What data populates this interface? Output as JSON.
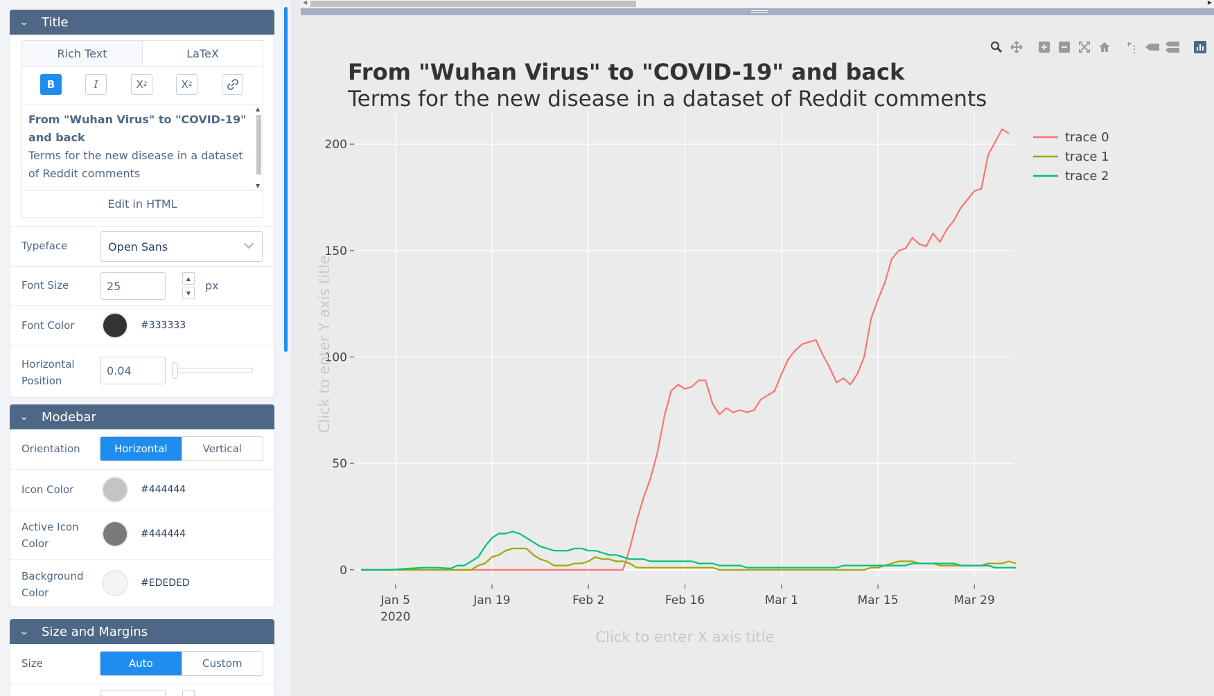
{
  "title_panel": {
    "heading": "Title",
    "tabs": [
      "Rich Text",
      "LaTeX"
    ],
    "format_buttons": [
      "B",
      "I",
      "X2",
      "X2",
      "link"
    ],
    "rich_text_bold": "From \"Wuhan Virus\" to \"COVID-19\" and back",
    "rich_text_plain": "Terms for the new disease in a dataset of Reddit comments",
    "edit_html_label": "Edit in HTML",
    "typeface_label": "Typeface",
    "typeface_value": "Open Sans",
    "font_size_label": "Font Size",
    "font_size_value": "25",
    "font_size_unit": "px",
    "font_color_label": "Font Color",
    "font_color_value": "#333333",
    "hpos_label_1": "Horizontal",
    "hpos_label_2": "Position",
    "hpos_value": "0.04"
  },
  "modebar_panel": {
    "heading": "Modebar",
    "orientation_label": "Orientation",
    "orientation_options": [
      "Horizontal",
      "Vertical"
    ],
    "orientation_selected": "Horizontal",
    "icon_color_label": "Icon Color",
    "icon_color_value": "#444444",
    "icon_swatch": "#c4c4c4",
    "active_icon_label_1": "Active Icon",
    "active_icon_label_2": "Color",
    "active_icon_value": "#444444",
    "active_icon_swatch": "#7a7a7a",
    "bg_label_1": "Background",
    "bg_label_2": "Color",
    "bg_value": "#EDEDED",
    "bg_swatch": "#f4f4f4"
  },
  "size_panel": {
    "heading": "Size and Margins",
    "size_label": "Size",
    "size_options": [
      "Auto",
      "Custom"
    ],
    "size_selected": "Auto"
  },
  "modebar_icons": [
    "zoom-icon",
    "pan-icon",
    "zoom-in-icon",
    "zoom-out-icon",
    "autoscale-icon",
    "home-icon",
    "spike-lines-icon",
    "hover-closest-icon",
    "hover-compare-icon",
    "plotly-logo-icon"
  ],
  "chart_data": {
    "type": "line",
    "title": "From \"Wuhan Virus\" to \"COVID-19\" and back",
    "subtitle": "Terms for the new disease in a dataset of Reddit comments",
    "xlabel_placeholder": "Click to enter X axis title",
    "ylabel_placeholder": "Click to enter Y axis title",
    "x_start": "2019-12-31",
    "x_tick_labels": [
      "Jan 5",
      "Jan 19",
      "Feb 2",
      "Feb 16",
      "Mar 1",
      "Mar 15",
      "Mar 29"
    ],
    "x_tick_sublabel": "2020",
    "y_ticks": [
      0,
      50,
      100,
      150,
      200
    ],
    "ylim": [
      -3,
      215
    ],
    "legend_position": "top-right",
    "series": [
      {
        "name": "trace 0",
        "color": "#f8766d",
        "values": [
          0,
          0,
          0,
          0,
          0,
          0,
          0,
          0,
          0,
          0,
          0,
          0,
          0,
          0,
          0,
          0,
          0,
          0,
          0,
          0,
          0,
          0,
          0,
          0,
          0,
          0,
          0,
          0,
          0,
          0,
          0,
          0,
          0,
          0,
          0,
          0,
          0,
          0,
          0,
          10,
          23,
          34,
          43,
          55,
          72,
          84,
          87,
          85,
          86,
          89,
          89,
          78,
          73,
          76,
          74,
          75,
          74,
          75,
          80,
          82,
          84,
          92,
          99,
          103,
          106,
          107,
          108,
          101,
          95,
          88,
          90,
          87,
          92,
          100,
          118,
          127,
          135,
          146,
          150,
          151,
          156,
          153,
          152,
          158,
          154,
          160,
          164,
          170,
          174,
          178,
          179,
          195,
          201,
          207,
          205
        ]
      },
      {
        "name": "trace 1",
        "color": "#a3a500",
        "values": [
          0,
          0,
          0,
          0,
          0,
          0,
          0,
          0,
          0,
          0,
          0,
          0,
          0,
          0,
          0,
          0,
          0,
          2,
          3,
          6,
          7,
          9,
          10,
          10,
          10,
          7,
          5,
          4,
          2,
          2,
          2,
          3,
          3,
          4,
          6,
          5,
          5,
          4,
          4,
          3,
          1,
          1,
          1,
          1,
          1,
          1,
          1,
          1,
          1,
          1,
          1,
          1,
          0,
          0,
          0,
          0,
          0,
          0,
          0,
          0,
          0,
          0,
          0,
          0,
          0,
          0,
          0,
          0,
          0,
          0,
          0,
          0,
          0,
          0,
          1,
          1,
          2,
          3,
          4,
          4,
          4,
          3,
          3,
          3,
          2,
          2,
          2,
          2,
          2,
          2,
          2,
          3,
          3,
          3,
          4,
          3
        ]
      },
      {
        "name": "trace 2",
        "color": "#00bf7d",
        "values": [
          0,
          0,
          0,
          0,
          0,
          0.2,
          0.4,
          0.6,
          0.8,
          1,
          1,
          1,
          0.8,
          0.6,
          2,
          2,
          4,
          6,
          11,
          15,
          17,
          17,
          18,
          17,
          15,
          13,
          11,
          10,
          9,
          9,
          9,
          10,
          10,
          9,
          9,
          8,
          7,
          7,
          6,
          5,
          5,
          5,
          4,
          4,
          4,
          4,
          4,
          4,
          4,
          3,
          3,
          3,
          2,
          2,
          2,
          2,
          1,
          1,
          1,
          1,
          1,
          1,
          1,
          1,
          1,
          1,
          1,
          1,
          1,
          1,
          2,
          2,
          2,
          2,
          2,
          2,
          2,
          2,
          2,
          2,
          3,
          3,
          3,
          3,
          3,
          3,
          3,
          2,
          2,
          2,
          2,
          2,
          1,
          1,
          1,
          1
        ]
      }
    ]
  }
}
